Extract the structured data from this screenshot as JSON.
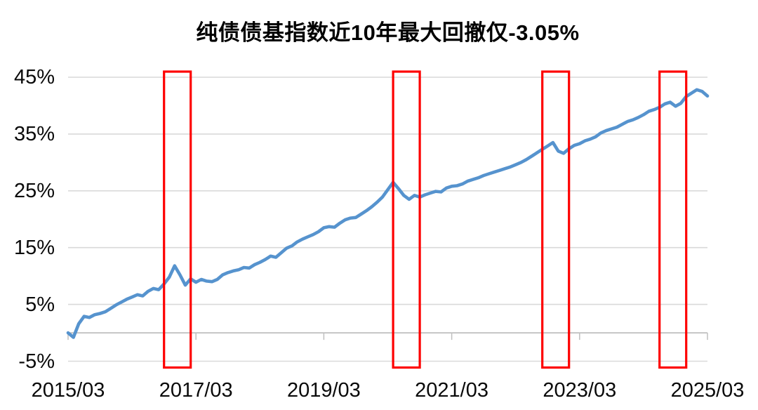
{
  "title": "纯债债基指数近10年最大回撤仅-3.05%",
  "colors": {
    "line": "#5693ce",
    "highlight_box": "#fe0000",
    "gridline": "#d9d9d9",
    "axis_line": "#bfbfbf",
    "text": "#000000",
    "background": "#ffffff"
  },
  "chart_data": {
    "type": "line",
    "title": "纯债债基指数近10年最大回撤仅-3.05%",
    "subtitle": "",
    "legend": "none",
    "grid": "horizontal",
    "x_start": "2015/03",
    "x_interval": "monthly",
    "x_tick_labels": [
      "2015/03",
      "2017/03",
      "2019/03",
      "2021/03",
      "2023/03",
      "2025/03"
    ],
    "x_tick_month_offsets": [
      0,
      24,
      48,
      72,
      96,
      120
    ],
    "y_ticks": [
      45,
      35,
      25,
      15,
      5,
      -5
    ],
    "y_tick_labels": [
      "45%",
      "35%",
      "25%",
      "15%",
      "5%",
      "-5%"
    ],
    "ylim": [
      -5,
      45
    ],
    "unit": "percent",
    "max_drawdown_label": "-3.05%",
    "values": [
      0.0,
      -0.8,
      1.6,
      2.9,
      2.7,
      3.2,
      3.4,
      3.7,
      4.3,
      4.9,
      5.4,
      5.9,
      6.3,
      6.7,
      6.5,
      7.3,
      7.8,
      7.6,
      8.6,
      9.8,
      11.8,
      10.2,
      8.4,
      9.5,
      8.9,
      9.4,
      9.1,
      9.0,
      9.4,
      10.2,
      10.6,
      10.9,
      11.1,
      11.5,
      11.4,
      12.0,
      12.4,
      12.9,
      13.5,
      13.3,
      14.1,
      14.9,
      15.3,
      16.0,
      16.5,
      16.9,
      17.3,
      17.8,
      18.5,
      18.7,
      18.6,
      19.3,
      19.9,
      20.2,
      20.3,
      20.9,
      21.5,
      22.2,
      23.0,
      23.9,
      25.2,
      26.5,
      25.4,
      24.2,
      23.5,
      24.2,
      23.9,
      24.3,
      24.6,
      24.9,
      24.8,
      25.5,
      25.8,
      25.9,
      26.2,
      26.7,
      27.0,
      27.3,
      27.7,
      28.0,
      28.3,
      28.6,
      28.9,
      29.2,
      29.6,
      30.0,
      30.5,
      31.1,
      31.7,
      32.3,
      32.9,
      33.5,
      32.0,
      31.6,
      32.4,
      33.0,
      33.3,
      33.8,
      34.1,
      34.5,
      35.2,
      35.6,
      35.9,
      36.2,
      36.7,
      37.2,
      37.5,
      37.9,
      38.4,
      39.0,
      39.3,
      39.7,
      40.3,
      40.6,
      39.9,
      40.4,
      41.6,
      42.2,
      42.8,
      42.5,
      41.7
    ],
    "highlight_boxes": [
      {
        "from": "2016/09",
        "to": "2017/02"
      },
      {
        "from": "2020/04",
        "to": "2020/09"
      },
      {
        "from": "2022/08",
        "to": "2023/01"
      },
      {
        "from": "2024/06",
        "to": "2024/11"
      }
    ]
  }
}
